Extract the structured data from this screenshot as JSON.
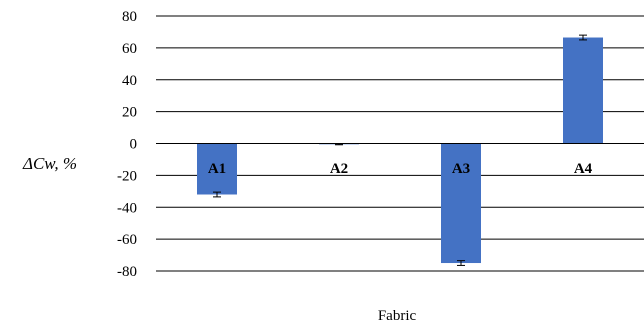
{
  "chart_data": {
    "type": "bar",
    "categories": [
      "A1",
      "A2",
      "A3",
      "A4"
    ],
    "values": [
      -32,
      -0.5,
      -75,
      66.5
    ],
    "error": [
      1.5,
      0.3,
      1.5,
      1.5
    ],
    "xlabel": "Fabric",
    "ylabel": "ΔCw, %",
    "ylim": [
      -80,
      80
    ],
    "yticks": [
      80,
      60,
      40,
      20,
      0,
      -20,
      -40,
      -60,
      -80
    ],
    "grid": true,
    "bar_color": "#4472C4",
    "legend": "none"
  }
}
